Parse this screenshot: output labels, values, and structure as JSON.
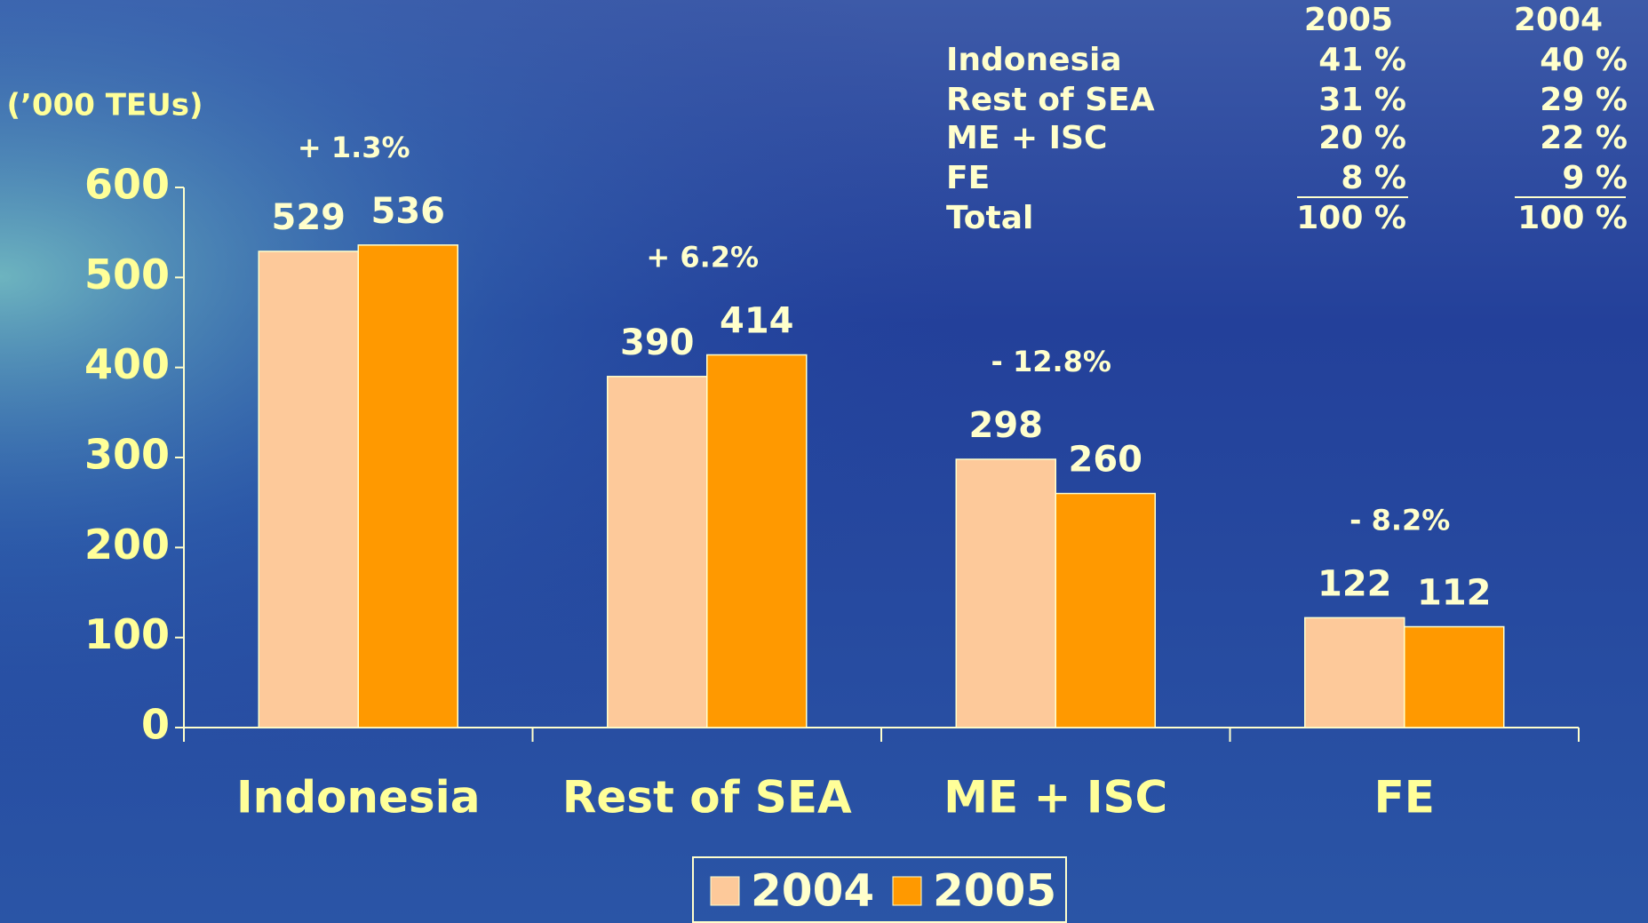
{
  "chart_data": {
    "type": "bar",
    "y_axis_label": "(’000 TEUs)",
    "categories": [
      "Indonesia",
      "Rest of SEA",
      "ME + ISC",
      "FE"
    ],
    "series": [
      {
        "name": "2004",
        "color": "#fdc99a",
        "values": [
          529,
          390,
          298,
          122
        ]
      },
      {
        "name": "2005",
        "color": "#ff9900",
        "values": [
          536,
          414,
          260,
          112
        ]
      }
    ],
    "annotations": [
      "+ 1.3%",
      "+ 6.2%",
      "- 12.8%",
      "- 8.2%"
    ],
    "ylim": [
      0,
      600
    ],
    "yticks": [
      0,
      100,
      200,
      300,
      400,
      500,
      600
    ],
    "grid": false,
    "legend": "bottom"
  },
  "table": {
    "headers": [
      "2005",
      "2004"
    ],
    "rows": [
      [
        "Indonesia",
        "41 %",
        "40 %"
      ],
      [
        "Rest of SEA",
        "31 %",
        "29 %"
      ],
      [
        "ME + ISC",
        "20 %",
        "22 %"
      ],
      [
        "FE",
        "8 %",
        "9 %"
      ],
      [
        "Total",
        "100 %",
        "100 %"
      ]
    ]
  }
}
